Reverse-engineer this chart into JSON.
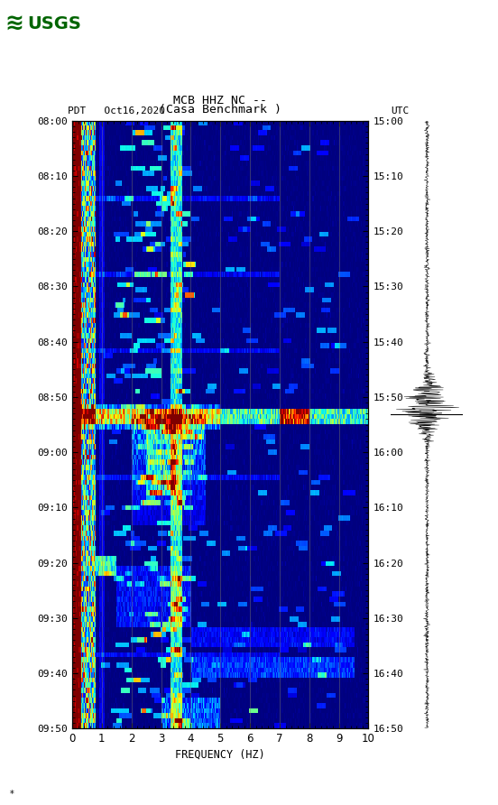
{
  "title_line1": "MCB HHZ NC --",
  "title_line2": "(Casa Benchmark )",
  "left_label": "PDT   Oct16,2020",
  "right_label": "UTC",
  "xlabel": "FREQUENCY (HZ)",
  "freq_min": 0,
  "freq_max": 10,
  "left_ticks_pdt": [
    "08:00",
    "08:10",
    "08:20",
    "08:30",
    "08:40",
    "08:50",
    "09:00",
    "09:10",
    "09:20",
    "09:30",
    "09:40",
    "09:50"
  ],
  "right_ticks_utc": [
    "15:00",
    "15:10",
    "15:20",
    "15:30",
    "15:40",
    "15:50",
    "16:00",
    "16:10",
    "16:20",
    "16:30",
    "16:40",
    "16:50"
  ],
  "freq_ticks": [
    0,
    1,
    2,
    3,
    4,
    5,
    6,
    7,
    8,
    9,
    10
  ],
  "background_color": "#ffffff",
  "seed": 42
}
